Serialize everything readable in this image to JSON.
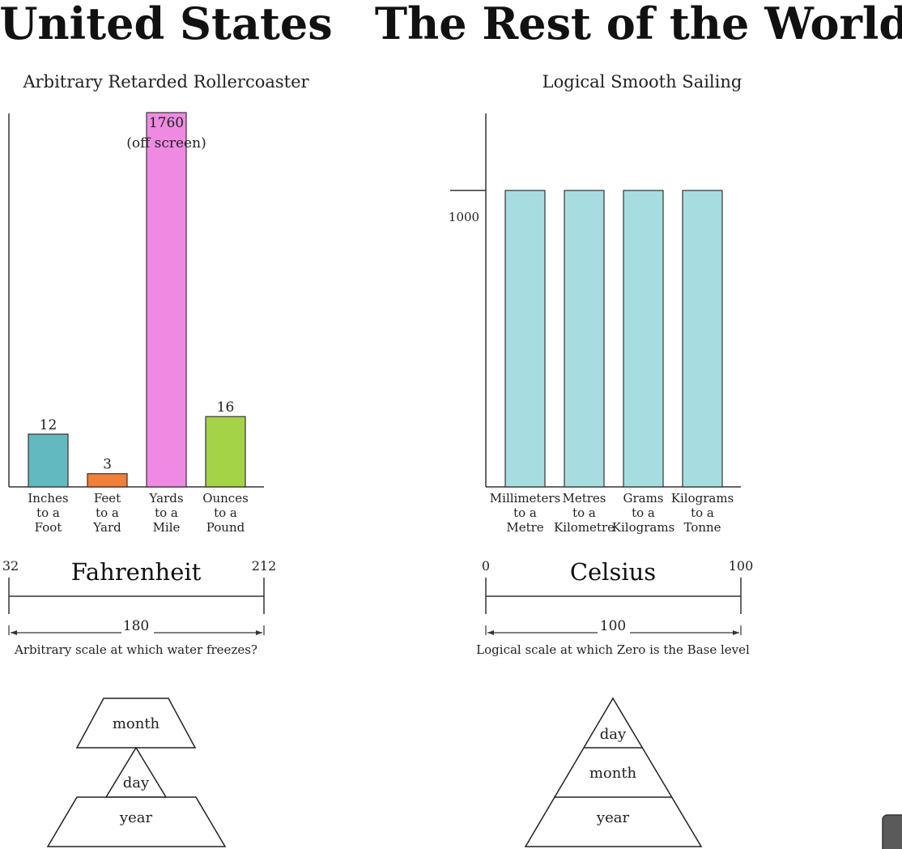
{
  "headings": {
    "left": "United States",
    "right": "The Rest of the World"
  },
  "chart_data": [
    {
      "type": "bar",
      "title": "Arbitrary Retarded Rollercoaster",
      "categories": [
        [
          "Inches",
          "to a",
          "Foot"
        ],
        [
          "Feet",
          "to a",
          "Yard"
        ],
        [
          "Yards",
          "to a",
          "Mile"
        ],
        [
          "Ounces",
          "to a",
          "Pound"
        ]
      ],
      "values": [
        12,
        3,
        1760,
        16
      ],
      "value_labels": [
        "12",
        "3",
        "1760",
        "16"
      ],
      "off_screen_note": "(off screen)",
      "colors": [
        "#62b9bf",
        "#f07f3a",
        "#ef8ae3",
        "#a4d348"
      ],
      "ylim": [
        0,
        85
      ],
      "clipped_index": 2
    },
    {
      "type": "bar",
      "title": "Logical Smooth Sailing",
      "categories": [
        [
          "Millimeters",
          "to a",
          "Metre"
        ],
        [
          "Metres",
          "to a",
          "Kilometre"
        ],
        [
          "Grams",
          "to a",
          "Kilograms"
        ],
        [
          "Kilograms",
          "to a",
          "Tonne"
        ]
      ],
      "values": [
        1000,
        1000,
        1000,
        1000
      ],
      "reference_tick": {
        "value": 1000,
        "label": "1000"
      },
      "colors": [
        "#a7dde0",
        "#a7dde0",
        "#a7dde0",
        "#a7dde0"
      ],
      "ylim": [
        0,
        1260
      ]
    }
  ],
  "scales": {
    "left": {
      "title": "Fahrenheit",
      "min_label": "32",
      "max_label": "212",
      "span_label": "180",
      "caption": "Arbitrary scale at which water freezes?"
    },
    "right": {
      "title": "Celsius",
      "min_label": "0",
      "max_label": "100",
      "span_label": "100",
      "caption": "Logical scale at which Zero is the Base level"
    }
  },
  "pyramids": {
    "left": {
      "top": "month",
      "middle": "day",
      "bottom": "year"
    },
    "right": {
      "top": "day",
      "middle": "month",
      "bottom": "year"
    }
  }
}
